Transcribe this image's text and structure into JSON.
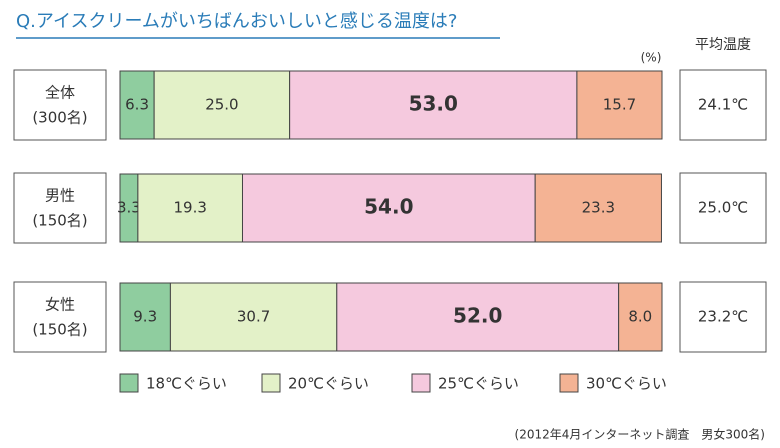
{
  "chart_data": {
    "type": "stacked_bar_horizontal",
    "title": "Q.アイスクリームがいちばんおいしいと感じる温度は?",
    "unit_label": "(%)",
    "categories": [
      "全体",
      "男性",
      "女性"
    ],
    "sample_sizes": [
      "(300名)",
      "(150名)",
      "(150名)"
    ],
    "average_header": "平均温度",
    "average_labels": [
      "24.1℃",
      "25.0℃",
      "23.2℃"
    ],
    "xlim": [
      0,
      100
    ],
    "series": [
      {
        "name": "18℃ぐらい",
        "color": "#8fcd9f",
        "values": [
          6.3,
          3.3,
          9.3
        ],
        "value_labels": [
          "6.3",
          "3.3",
          "9.3"
        ]
      },
      {
        "name": "20℃ぐらい",
        "color": "#e3f1c8",
        "values": [
          25.0,
          19.3,
          30.7
        ],
        "value_labels": [
          "25.0",
          "19.3",
          "30.7"
        ]
      },
      {
        "name": "25℃ぐらい",
        "color": "#f5c9de",
        "values": [
          53.0,
          54.0,
          52.0
        ],
        "value_labels": [
          "53.0",
          "54.0",
          "52.0"
        ]
      },
      {
        "name": "30℃ぐらい",
        "color": "#f4b394",
        "values": [
          15.7,
          23.3,
          8.0
        ],
        "value_labels": [
          "15.7",
          "23.3",
          "8.0"
        ]
      }
    ],
    "source": "(2012年4月インターネット調査　男女300名)"
  }
}
